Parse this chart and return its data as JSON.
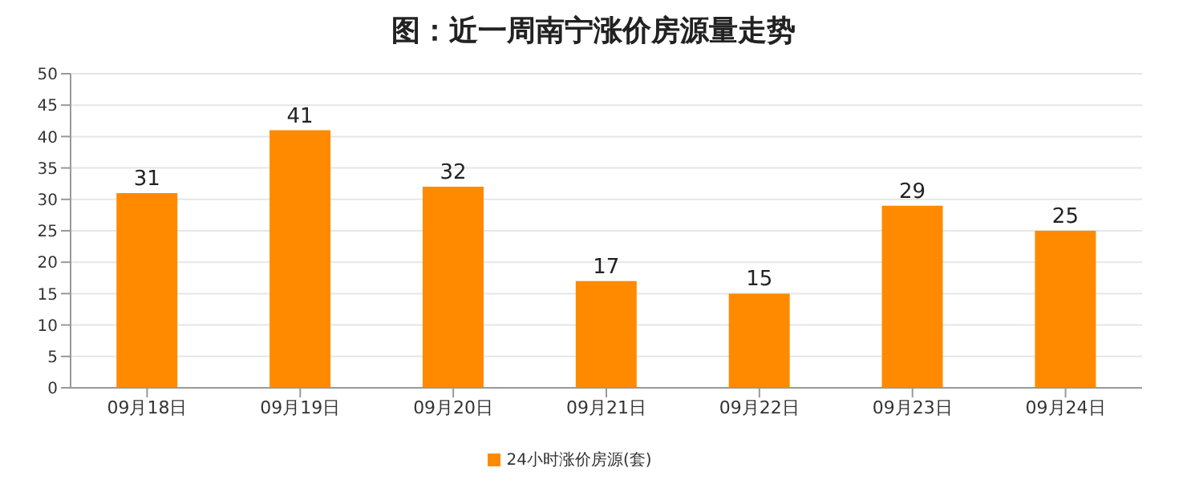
{
  "chart_data": {
    "type": "bar",
    "title": "图：近一周南宁涨价房源量走势",
    "categories": [
      "09月18日",
      "09月19日",
      "09月20日",
      "09月21日",
      "09月22日",
      "09月23日",
      "09月24日"
    ],
    "series": [
      {
        "name": "24小时涨价房源(套)",
        "color": "#ff8a00",
        "values": [
          31,
          41,
          32,
          17,
          15,
          29,
          25
        ]
      }
    ],
    "ylim": [
      0,
      50
    ],
    "yticks": [
      0,
      5,
      10,
      15,
      20,
      25,
      30,
      35,
      40,
      45,
      50
    ],
    "grid": "y",
    "legend": "bottom",
    "data_labels": true
  }
}
